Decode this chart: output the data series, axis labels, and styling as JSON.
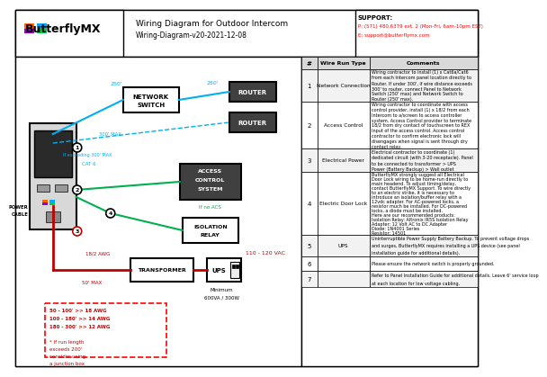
{
  "title": "Wiring Diagram for Outdoor Intercom",
  "subtitle": "Wiring-Diagram-v20-2021-12-08",
  "logo_text": "ButterflyMX",
  "support_line1": "SUPPORT:",
  "support_line2": "P: (571) 480.6379 ext. 2 (Mon-Fri, 6am-10pm EST)",
  "support_line3": "E: support@butterflymx.com",
  "bg_color": "#ffffff",
  "border_color": "#000000",
  "cyan_color": "#00b0f0",
  "green_color": "#00b050",
  "red_color": "#ff0000",
  "dark_red_color": "#c00000",
  "gray_color": "#808080",
  "table_header_bg": "#d9d9d9",
  "table_row_bg": "#ffffff",
  "table_alt_bg": "#f2f2f2",
  "table_rows": [
    {
      "num": "1",
      "type": "Network Connection",
      "comment": "Wiring contractor to install (1) x Cat6a/Cat6\nfrom each Intercom panel location directly to\nRouter. If under 300', if wire distance exceeds\n300' to router, connect Panel to Network\nSwitch (250' max) and Network Switch to\nRouter (250' max)."
    },
    {
      "num": "2",
      "type": "Access Control",
      "comment": "Wiring contractor to coordinate with access\ncontrol provider, install (1) x 18/2 from each\nIntercom to a/screen to access controller\nsystem. Access Control provider to terminate\n18/2 from dry contact of touchscreen to REX\nInput of the access control. Access control\ncontractor to confirm electronic lock will\ndisengages when signal is sent through dry\ncontact relay."
    },
    {
      "num": "3",
      "type": "Electrical Power",
      "comment": "Electrical contractor to coordinate (1)\ndedicated circuit (with 3-20 receptacle). Panel\nto be connected to transformer > UPS\nPower (Battery Backup) > Wall outlet"
    },
    {
      "num": "4",
      "type": "Electric Door Lock",
      "comment": "ButterflyMX strongly suggest all Electrical\nDoor Lock wiring to be home-run directly to\nmain headend. To adjust timing/delay,\ncontact ButterflyMX Support. To wire directly\nto an electric strike, it is necessary to\nintroduce an isolation/buffer relay with a\n12vdc adapter. For AC-powered locks, a\nresistor much be installed. For DC-powered\nlocks, a diode must be installed.\nHere are our recommended products:\nIsolation Relay: Altronix IR5S Isolation Relay\nAdapter: 12 Volt AC to DC Adapter\nDiode: 1N4001 Series\nResistor: 14501"
    },
    {
      "num": "5",
      "type": "UPS",
      "comment": "Uninterruptible Power Supply Battery Backup. To prevent voltage drops\nand surges, ButterflyMX requires installing a UPS device (see panel\ninstallation guide for additional details)."
    },
    {
      "num": "6",
      "type": "",
      "comment": "Please ensure the network switch is properly grounded."
    },
    {
      "num": "7",
      "type": "",
      "comment": "Refer to Panel Installation Guide for additional details. Leave 6' service loop\nat each location for low voltage cabling."
    }
  ]
}
